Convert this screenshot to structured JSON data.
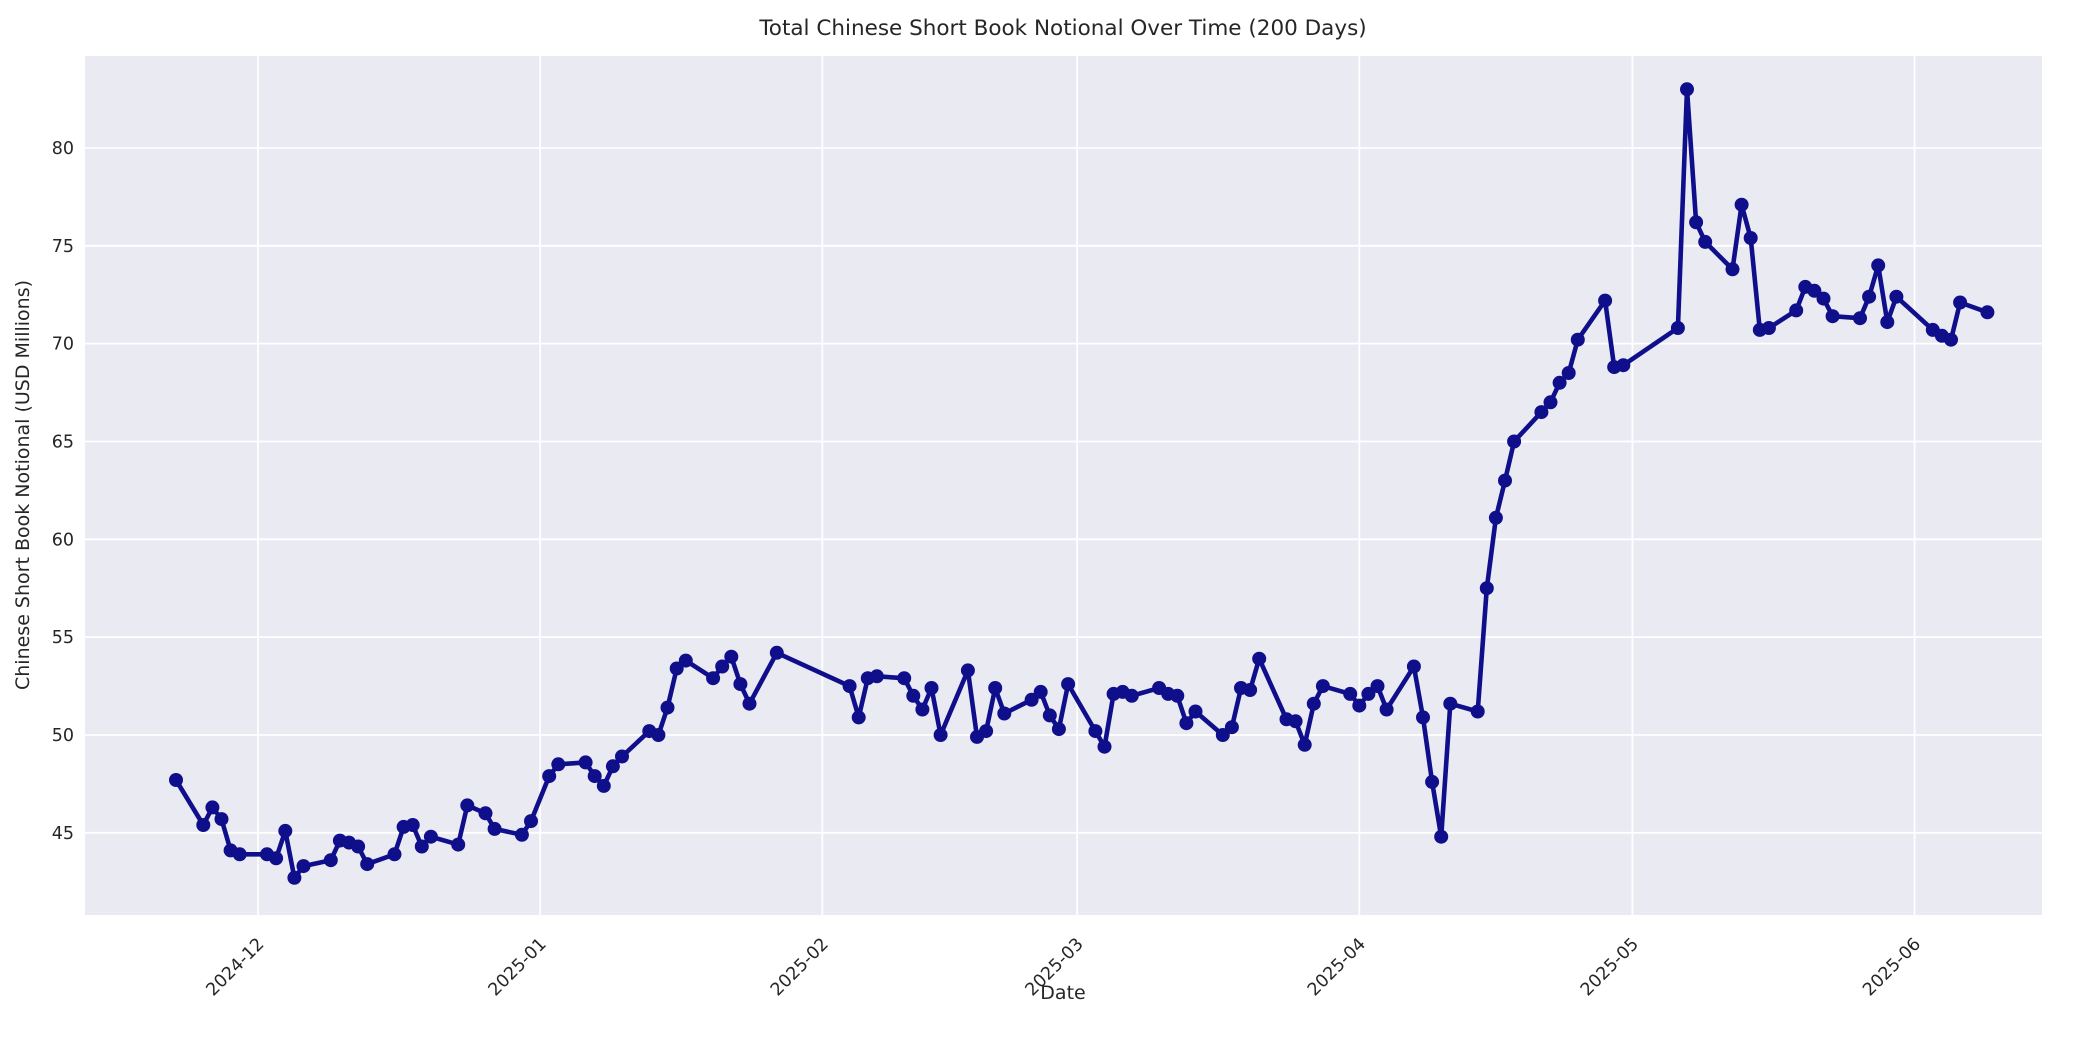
{
  "figure": {
    "background": "#ffffff",
    "plot_background": "#eaeaf2",
    "grid_color": "#ffffff",
    "text_color": "#262626"
  },
  "chart_data": {
    "type": "line",
    "title": "Total Chinese Short Book Notional Over Time (200 Days)",
    "xlabel": "Date",
    "ylabel": "Chinese Short Book Notional (USD Millions)",
    "legend_position": "none",
    "grid": true,
    "marker": "circle",
    "line_color": "#0f0f8c",
    "ylim": [
      40.8,
      84.7
    ],
    "xlim": [
      "2024-11-12",
      "2025-06-15"
    ],
    "yticks": [
      45,
      50,
      55,
      60,
      65,
      70,
      75,
      80
    ],
    "xticks": [
      {
        "label": "2024-12",
        "date": "2024-12-01"
      },
      {
        "label": "2025-01",
        "date": "2025-01-01"
      },
      {
        "label": "2025-02",
        "date": "2025-02-01"
      },
      {
        "label": "2025-03",
        "date": "2025-03-01"
      },
      {
        "label": "2025-04",
        "date": "2025-04-01"
      },
      {
        "label": "2025-05",
        "date": "2025-05-01"
      },
      {
        "label": "2025-06",
        "date": "2025-06-01"
      }
    ],
    "series": [
      {
        "name": "Total Chinese Short Book Notional",
        "color": "#0f0f8c",
        "points": [
          [
            "2024-11-22",
            47.7
          ],
          [
            "2024-11-25",
            45.4
          ],
          [
            "2024-11-26",
            46.3
          ],
          [
            "2024-11-27",
            45.7
          ],
          [
            "2024-11-28",
            44.1
          ],
          [
            "2024-11-29",
            43.9
          ],
          [
            "2024-12-02",
            43.9
          ],
          [
            "2024-12-03",
            43.7
          ],
          [
            "2024-12-04",
            45.1
          ],
          [
            "2024-12-05",
            42.7
          ],
          [
            "2024-12-06",
            43.3
          ],
          [
            "2024-12-09",
            43.6
          ],
          [
            "2024-12-10",
            44.6
          ],
          [
            "2024-12-11",
            44.5
          ],
          [
            "2024-12-12",
            44.3
          ],
          [
            "2024-12-13",
            43.4
          ],
          [
            "2024-12-16",
            43.9
          ],
          [
            "2024-12-17",
            45.3
          ],
          [
            "2024-12-18",
            45.4
          ],
          [
            "2024-12-19",
            44.3
          ],
          [
            "2024-12-20",
            44.8
          ],
          [
            "2024-12-23",
            44.4
          ],
          [
            "2024-12-24",
            46.4
          ],
          [
            "2024-12-26",
            46.0
          ],
          [
            "2024-12-27",
            45.2
          ],
          [
            "2024-12-30",
            44.9
          ],
          [
            "2024-12-31",
            45.6
          ],
          [
            "2025-01-02",
            47.9
          ],
          [
            "2025-01-03",
            48.5
          ],
          [
            "2025-01-06",
            48.6
          ],
          [
            "2025-01-07",
            47.9
          ],
          [
            "2025-01-08",
            47.4
          ],
          [
            "2025-01-09",
            48.4
          ],
          [
            "2025-01-10",
            48.9
          ],
          [
            "2025-01-13",
            50.2
          ],
          [
            "2025-01-14",
            50.0
          ],
          [
            "2025-01-15",
            51.4
          ],
          [
            "2025-01-16",
            53.4
          ],
          [
            "2025-01-17",
            53.8
          ],
          [
            "2025-01-20",
            52.9
          ],
          [
            "2025-01-21",
            53.5
          ],
          [
            "2025-01-22",
            54.0
          ],
          [
            "2025-01-23",
            52.6
          ],
          [
            "2025-01-24",
            51.6
          ],
          [
            "2025-01-27",
            54.2
          ],
          [
            "2025-02-04",
            52.5
          ],
          [
            "2025-02-05",
            50.9
          ],
          [
            "2025-02-06",
            52.9
          ],
          [
            "2025-02-07",
            53.0
          ],
          [
            "2025-02-10",
            52.9
          ],
          [
            "2025-02-11",
            52.0
          ],
          [
            "2025-02-12",
            51.3
          ],
          [
            "2025-02-13",
            52.4
          ],
          [
            "2025-02-14",
            50.0
          ],
          [
            "2025-02-17",
            53.3
          ],
          [
            "2025-02-18",
            49.9
          ],
          [
            "2025-02-19",
            50.2
          ],
          [
            "2025-02-20",
            52.4
          ],
          [
            "2025-02-21",
            51.1
          ],
          [
            "2025-02-24",
            51.8
          ],
          [
            "2025-02-25",
            52.2
          ],
          [
            "2025-02-26",
            51.0
          ],
          [
            "2025-02-27",
            50.3
          ],
          [
            "2025-02-28",
            52.6
          ],
          [
            "2025-03-03",
            50.2
          ],
          [
            "2025-03-04",
            49.4
          ],
          [
            "2025-03-05",
            52.1
          ],
          [
            "2025-03-06",
            52.2
          ],
          [
            "2025-03-07",
            52.0
          ],
          [
            "2025-03-10",
            52.4
          ],
          [
            "2025-03-11",
            52.1
          ],
          [
            "2025-03-12",
            52.0
          ],
          [
            "2025-03-13",
            50.6
          ],
          [
            "2025-03-14",
            51.2
          ],
          [
            "2025-03-17",
            50.0
          ],
          [
            "2025-03-18",
            50.4
          ],
          [
            "2025-03-19",
            52.4
          ],
          [
            "2025-03-20",
            52.3
          ],
          [
            "2025-03-21",
            53.9
          ],
          [
            "2025-03-24",
            50.8
          ],
          [
            "2025-03-25",
            50.7
          ],
          [
            "2025-03-26",
            49.5
          ],
          [
            "2025-03-27",
            51.6
          ],
          [
            "2025-03-28",
            52.5
          ],
          [
            "2025-03-31",
            52.1
          ],
          [
            "2025-04-01",
            51.5
          ],
          [
            "2025-04-02",
            52.1
          ],
          [
            "2025-04-03",
            52.5
          ],
          [
            "2025-04-04",
            51.3
          ],
          [
            "2025-04-07",
            53.5
          ],
          [
            "2025-04-08",
            50.9
          ],
          [
            "2025-04-09",
            47.6
          ],
          [
            "2025-04-10",
            44.8
          ],
          [
            "2025-04-11",
            51.6
          ],
          [
            "2025-04-14",
            51.2
          ],
          [
            "2025-04-15",
            57.5
          ],
          [
            "2025-04-16",
            61.1
          ],
          [
            "2025-04-17",
            63.0
          ],
          [
            "2025-04-18",
            65.0
          ],
          [
            "2025-04-21",
            66.5
          ],
          [
            "2025-04-22",
            67.0
          ],
          [
            "2025-04-23",
            68.0
          ],
          [
            "2025-04-24",
            68.5
          ],
          [
            "2025-04-25",
            70.2
          ],
          [
            "2025-04-28",
            72.2
          ],
          [
            "2025-04-29",
            68.8
          ],
          [
            "2025-04-30",
            68.9
          ],
          [
            "2025-05-06",
            70.8
          ],
          [
            "2025-05-07",
            83.0
          ],
          [
            "2025-05-08",
            76.2
          ],
          [
            "2025-05-09",
            75.2
          ],
          [
            "2025-05-12",
            73.8
          ],
          [
            "2025-05-13",
            77.1
          ],
          [
            "2025-05-14",
            75.4
          ],
          [
            "2025-05-15",
            70.7
          ],
          [
            "2025-05-16",
            70.8
          ],
          [
            "2025-05-19",
            71.7
          ],
          [
            "2025-05-20",
            72.9
          ],
          [
            "2025-05-21",
            72.7
          ],
          [
            "2025-05-22",
            72.3
          ],
          [
            "2025-05-23",
            71.4
          ],
          [
            "2025-05-26",
            71.3
          ],
          [
            "2025-05-27",
            72.4
          ],
          [
            "2025-05-28",
            74.0
          ],
          [
            "2025-05-29",
            71.1
          ],
          [
            "2025-05-30",
            72.4
          ],
          [
            "2025-06-03",
            70.7
          ],
          [
            "2025-06-04",
            70.4
          ],
          [
            "2025-06-05",
            70.2
          ],
          [
            "2025-06-06",
            72.1
          ],
          [
            "2025-06-09",
            71.6
          ]
        ]
      }
    ]
  }
}
